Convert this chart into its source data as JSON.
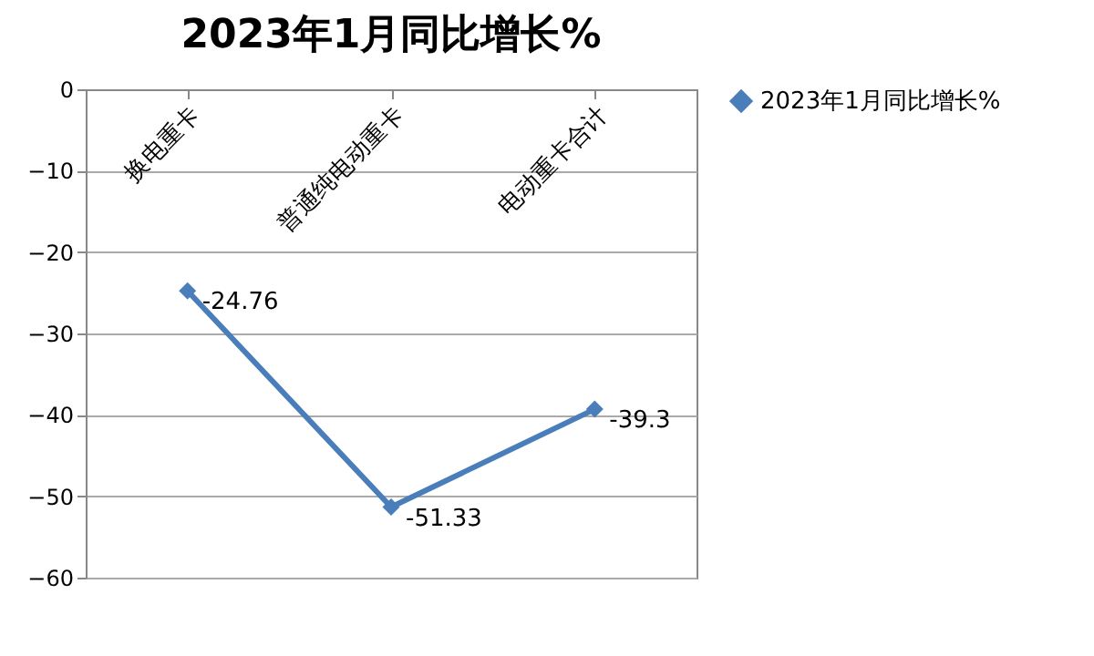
{
  "chart_data": {
    "type": "line",
    "title": "2023年1月同比增长%",
    "categories": [
      "换电重卡",
      "普通纯电动重卡",
      "电动重卡合计"
    ],
    "series": [
      {
        "name": "2023年1月同比增长%",
        "color": "#4a7ebb",
        "values": [
          -24.76,
          -51.33,
          -39.3
        ]
      }
    ],
    "ylim": [
      -60,
      0
    ],
    "yticks": [
      -60,
      -50,
      -40,
      -30,
      -20,
      -10,
      0
    ],
    "grid": "y",
    "legend": "right",
    "marker": "diamond",
    "line_style": "solid",
    "data_labels": true
  }
}
